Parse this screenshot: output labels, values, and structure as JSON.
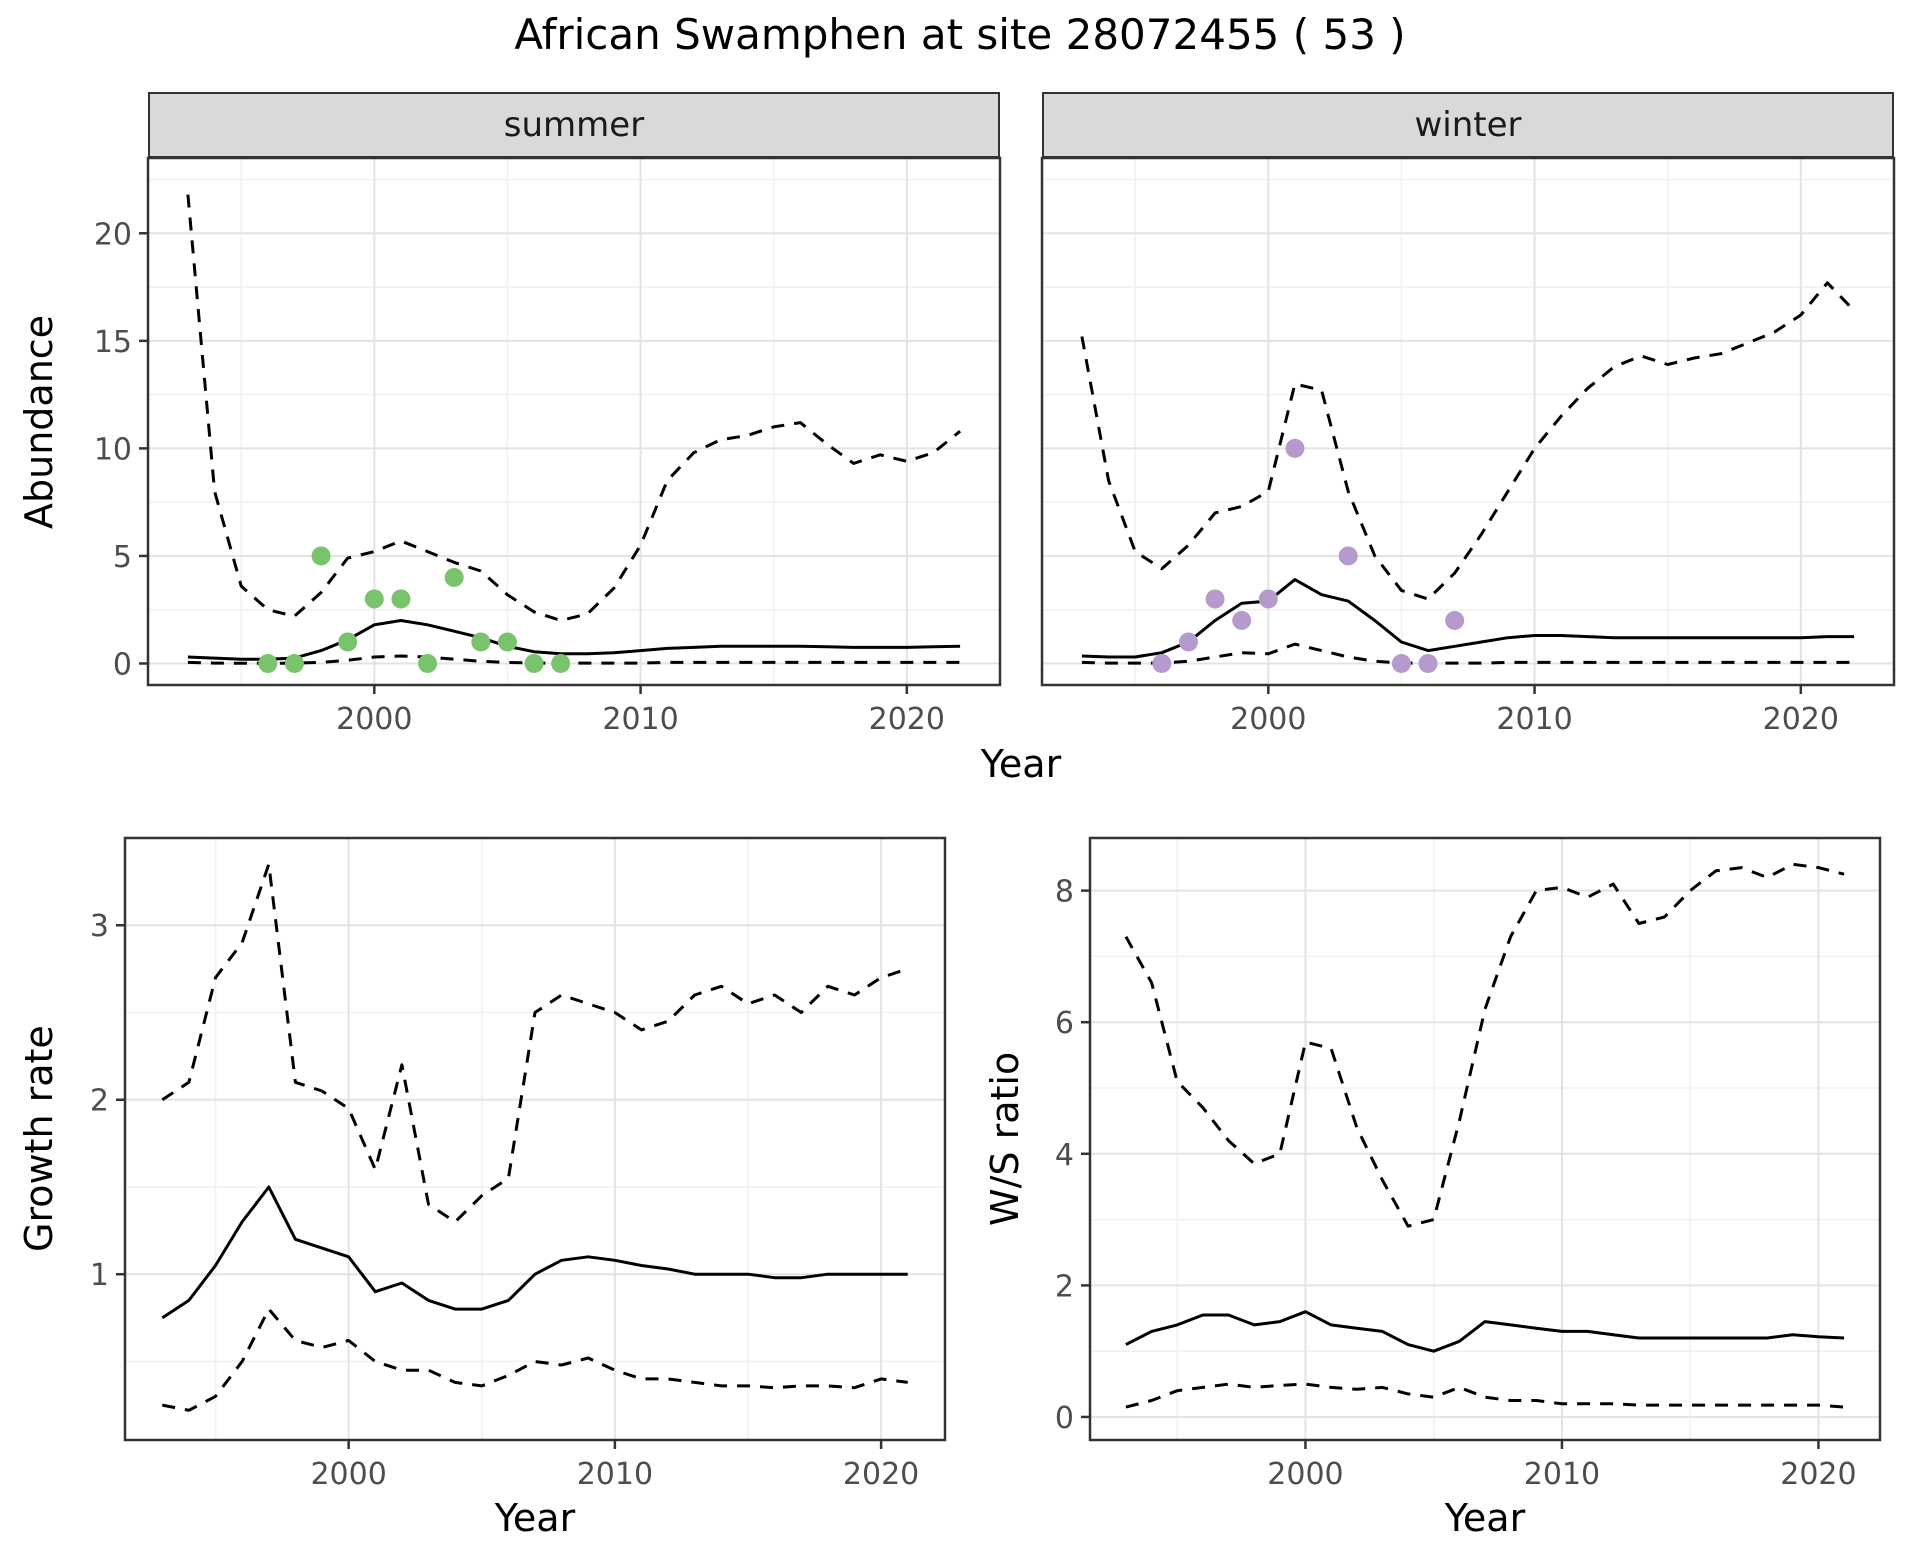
{
  "title": "African Swamphen at site 28072455 ( 53 )",
  "facets": {
    "summer": "summer",
    "winter": "winter"
  },
  "axis_labels": {
    "x": "Year",
    "y_abundance": "Abundance",
    "y_growth": "Growth rate",
    "y_ws": "W/S ratio"
  },
  "colors": {
    "summer_points": "#79c36d",
    "winter_points": "#b69ace",
    "line": "#000000",
    "strip_bg": "#d9d9d9",
    "panel_border": "#333333",
    "grid_major": "#e3e3e3",
    "grid_minor": "#f1f1f1",
    "tick_text": "#4d4d4d",
    "tick_mark": "#333333"
  },
  "chart_data": [
    {
      "id": "abundance_summer",
      "type": "line",
      "facet": "summer",
      "xlabel": "Year",
      "ylabel": "Abundance",
      "xlim": [
        1991.5,
        2023.5
      ],
      "ylim": [
        -1,
        23.5
      ],
      "x_ticks": [
        2000,
        2010,
        2020
      ],
      "y_ticks": [
        0,
        5,
        10,
        15,
        20
      ],
      "x_minor": [
        1995,
        2005,
        2015
      ],
      "y_minor": [
        2.5,
        7.5,
        12.5,
        17.5,
        22.5
      ],
      "x": [
        1993,
        1994,
        1995,
        1996,
        1997,
        1998,
        1999,
        2000,
        2001,
        2002,
        2003,
        2004,
        2005,
        2006,
        2007,
        2008,
        2009,
        2010,
        2011,
        2012,
        2013,
        2014,
        2015,
        2016,
        2017,
        2018,
        2019,
        2020,
        2021,
        2022
      ],
      "series": [
        {
          "name": "upper_ci",
          "style": "dashed",
          "values": [
            21.8,
            8.0,
            3.6,
            2.5,
            2.2,
            3.3,
            4.9,
            5.2,
            5.7,
            5.2,
            4.7,
            4.3,
            3.2,
            2.4,
            2.0,
            2.3,
            3.5,
            5.5,
            8.5,
            9.8,
            10.4,
            10.6,
            11.0,
            11.2,
            10.2,
            9.3,
            9.7,
            9.4,
            9.8,
            10.8
          ]
        },
        {
          "name": "mean",
          "style": "solid",
          "values": [
            0.3,
            0.25,
            0.2,
            0.2,
            0.25,
            0.6,
            1.1,
            1.8,
            2.0,
            1.8,
            1.5,
            1.2,
            0.8,
            0.55,
            0.45,
            0.45,
            0.5,
            0.6,
            0.7,
            0.75,
            0.8,
            0.8,
            0.8,
            0.8,
            0.78,
            0.75,
            0.75,
            0.75,
            0.78,
            0.8
          ]
        },
        {
          "name": "lower_ci",
          "style": "dashed",
          "values": [
            0.05,
            0.02,
            0.01,
            0.01,
            0.02,
            0.05,
            0.15,
            0.3,
            0.35,
            0.3,
            0.2,
            0.1,
            0.05,
            0.02,
            0.02,
            0.02,
            0.02,
            0.02,
            0.05,
            0.05,
            0.05,
            0.05,
            0.05,
            0.05,
            0.05,
            0.05,
            0.05,
            0.05,
            0.05,
            0.05
          ]
        }
      ],
      "points": {
        "name": "observed_counts_summer",
        "color_key": "summer_points",
        "x": [
          1996,
          1997,
          1998,
          1999,
          2000,
          2001,
          2002,
          2003,
          2004,
          2005,
          2006,
          2007
        ],
        "y": [
          0,
          0,
          5,
          1,
          3,
          3,
          0,
          4,
          1,
          1,
          0,
          0
        ]
      }
    },
    {
      "id": "abundance_winter",
      "type": "line",
      "facet": "winter",
      "xlabel": "Year",
      "ylabel": "Abundance",
      "xlim": [
        1991.5,
        2023.5
      ],
      "ylim": [
        -1,
        23.5
      ],
      "x_ticks": [
        2000,
        2010,
        2020
      ],
      "y_ticks": [
        0,
        5,
        10,
        15,
        20
      ],
      "x_minor": [
        1995,
        2005,
        2015
      ],
      "y_minor": [
        2.5,
        7.5,
        12.5,
        17.5,
        22.5
      ],
      "x": [
        1993,
        1994,
        1995,
        1996,
        1997,
        1998,
        1999,
        2000,
        2001,
        2002,
        2003,
        2004,
        2005,
        2006,
        2007,
        2008,
        2009,
        2010,
        2011,
        2012,
        2013,
        2014,
        2015,
        2016,
        2017,
        2018,
        2019,
        2020,
        2021,
        2022
      ],
      "series": [
        {
          "name": "upper_ci",
          "style": "dashed",
          "values": [
            15.2,
            8.5,
            5.2,
            4.4,
            5.5,
            7.0,
            7.3,
            8.0,
            13.0,
            12.7,
            8.0,
            5.0,
            3.4,
            3.0,
            4.2,
            6.0,
            8.0,
            10.0,
            11.5,
            12.8,
            13.8,
            14.3,
            13.9,
            14.2,
            14.4,
            14.9,
            15.4,
            16.2,
            17.7,
            16.4
          ]
        },
        {
          "name": "mean",
          "style": "solid",
          "values": [
            0.35,
            0.3,
            0.3,
            0.5,
            1.0,
            2.0,
            2.8,
            2.9,
            3.9,
            3.2,
            2.9,
            2.0,
            1.0,
            0.6,
            0.8,
            1.0,
            1.2,
            1.3,
            1.3,
            1.25,
            1.2,
            1.2,
            1.2,
            1.2,
            1.2,
            1.2,
            1.2,
            1.2,
            1.25,
            1.25
          ]
        },
        {
          "name": "lower_ci",
          "style": "dashed",
          "values": [
            0.05,
            0.02,
            0.02,
            0.02,
            0.1,
            0.3,
            0.5,
            0.45,
            0.9,
            0.6,
            0.3,
            0.1,
            0.02,
            0.02,
            0.02,
            0.02,
            0.05,
            0.05,
            0.05,
            0.05,
            0.05,
            0.05,
            0.05,
            0.05,
            0.05,
            0.05,
            0.05,
            0.05,
            0.05,
            0.05
          ]
        }
      ],
      "points": {
        "name": "observed_counts_winter",
        "color_key": "winter_points",
        "x": [
          1996,
          1997,
          1998,
          1999,
          2000,
          2001,
          2003,
          2005,
          2006,
          2007
        ],
        "y": [
          0,
          1,
          3,
          2,
          3,
          10,
          5,
          0,
          0,
          2
        ]
      }
    },
    {
      "id": "growth_rate",
      "type": "line",
      "facet": null,
      "xlabel": "Year",
      "ylabel": "Growth rate",
      "xlim": [
        1991.6,
        2022.4
      ],
      "ylim": [
        0.05,
        3.5
      ],
      "x_ticks": [
        2000,
        2010,
        2020
      ],
      "y_ticks": [
        1,
        2,
        3
      ],
      "x_minor": [
        1995,
        2005,
        2015
      ],
      "y_minor": [
        0.5,
        1.5,
        2.5
      ],
      "x": [
        1993,
        1994,
        1995,
        1996,
        1997,
        1998,
        1999,
        2000,
        2001,
        2002,
        2003,
        2004,
        2005,
        2006,
        2007,
        2008,
        2009,
        2010,
        2011,
        2012,
        2013,
        2014,
        2015,
        2016,
        2017,
        2018,
        2019,
        2020,
        2021
      ],
      "series": [
        {
          "name": "upper_ci",
          "style": "dashed",
          "values": [
            2.0,
            2.1,
            2.7,
            2.9,
            3.35,
            2.1,
            2.05,
            1.95,
            1.6,
            2.2,
            1.4,
            1.3,
            1.45,
            1.55,
            2.5,
            2.6,
            2.55,
            2.5,
            2.4,
            2.45,
            2.6,
            2.65,
            2.55,
            2.6,
            2.5,
            2.65,
            2.6,
            2.7,
            2.75
          ]
        },
        {
          "name": "mean",
          "style": "solid",
          "values": [
            0.75,
            0.85,
            1.05,
            1.3,
            1.5,
            1.2,
            1.15,
            1.1,
            0.9,
            0.95,
            0.85,
            0.8,
            0.8,
            0.85,
            1.0,
            1.08,
            1.1,
            1.08,
            1.05,
            1.03,
            1.0,
            1.0,
            1.0,
            0.98,
            0.98,
            1.0,
            1.0,
            1.0,
            1.0
          ]
        },
        {
          "name": "lower_ci",
          "style": "dashed",
          "values": [
            0.25,
            0.22,
            0.3,
            0.5,
            0.8,
            0.62,
            0.58,
            0.62,
            0.5,
            0.45,
            0.45,
            0.38,
            0.36,
            0.42,
            0.5,
            0.48,
            0.52,
            0.45,
            0.4,
            0.4,
            0.38,
            0.36,
            0.36,
            0.35,
            0.36,
            0.36,
            0.35,
            0.4,
            0.38
          ]
        }
      ],
      "points": null
    },
    {
      "id": "ws_ratio",
      "type": "line",
      "facet": null,
      "xlabel": "Year",
      "ylabel": "W/S ratio",
      "xlim": [
        1991.6,
        2022.4
      ],
      "ylim": [
        -0.35,
        8.8
      ],
      "x_ticks": [
        2000,
        2010,
        2020
      ],
      "y_ticks": [
        0,
        2,
        4,
        6,
        8
      ],
      "x_minor": [
        1995,
        2005,
        2015
      ],
      "y_minor": [
        1,
        3,
        5,
        7
      ],
      "x": [
        1993,
        1994,
        1995,
        1996,
        1997,
        1998,
        1999,
        2000,
        2001,
        2002,
        2003,
        2004,
        2005,
        2006,
        2007,
        2008,
        2009,
        2010,
        2011,
        2012,
        2013,
        2014,
        2015,
        2016,
        2017,
        2018,
        2019,
        2020,
        2021
      ],
      "series": [
        {
          "name": "upper_ci",
          "style": "dashed",
          "values": [
            7.3,
            6.6,
            5.1,
            4.7,
            4.2,
            3.85,
            4.0,
            5.7,
            5.6,
            4.4,
            3.6,
            2.9,
            3.0,
            4.5,
            6.2,
            7.3,
            8.0,
            8.05,
            7.9,
            8.1,
            7.5,
            7.6,
            8.0,
            8.3,
            8.35,
            8.2,
            8.4,
            8.35,
            8.25
          ]
        },
        {
          "name": "mean",
          "style": "solid",
          "values": [
            1.1,
            1.3,
            1.4,
            1.55,
            1.55,
            1.4,
            1.45,
            1.6,
            1.4,
            1.35,
            1.3,
            1.1,
            1.0,
            1.15,
            1.45,
            1.4,
            1.35,
            1.3,
            1.3,
            1.25,
            1.2,
            1.2,
            1.2,
            1.2,
            1.2,
            1.2,
            1.25,
            1.22,
            1.2
          ]
        },
        {
          "name": "lower_ci",
          "style": "dashed",
          "values": [
            0.15,
            0.25,
            0.4,
            0.45,
            0.5,
            0.45,
            0.48,
            0.5,
            0.45,
            0.42,
            0.45,
            0.35,
            0.3,
            0.45,
            0.3,
            0.25,
            0.25,
            0.2,
            0.2,
            0.2,
            0.18,
            0.18,
            0.18,
            0.18,
            0.18,
            0.18,
            0.18,
            0.18,
            0.15
          ]
        }
      ],
      "points": null
    }
  ]
}
